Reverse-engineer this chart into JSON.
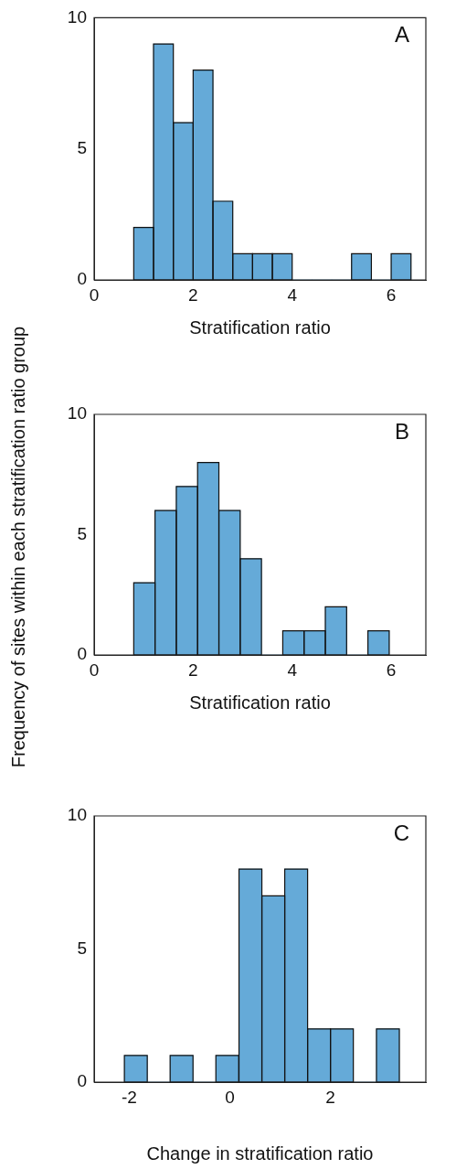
{
  "chart_data": [
    {
      "type": "histogram",
      "xlabel": "Stratification ratio",
      "annotations": [
        "A"
      ],
      "color": "#65aad8",
      "bins": [
        0.8,
        1.2,
        1.6,
        2.0,
        2.4,
        2.8,
        3.2,
        3.6,
        4.0,
        4.4,
        4.8,
        5.2,
        5.6,
        6.0,
        6.4
      ],
      "values": [
        2,
        9,
        6,
        8,
        3,
        1,
        1,
        1,
        0,
        0,
        0,
        1,
        0,
        1
      ],
      "xlim": [
        0,
        6.7
      ],
      "xticks": [
        0,
        2,
        4,
        6
      ],
      "ylim": [
        0,
        10
      ],
      "yticks": [
        0,
        5,
        10
      ],
      "grid": false,
      "legend": false
    },
    {
      "type": "histogram",
      "xlabel": "Stratification ratio",
      "ylabel": "Frequency of sites within each stratification ratio group",
      "annotations": [
        "B"
      ],
      "color": "#65aad8",
      "bins": [
        0.8,
        1.23,
        1.66,
        2.09,
        2.52,
        2.95,
        3.38,
        3.81,
        4.24,
        4.67,
        5.1,
        5.53,
        5.96
      ],
      "values": [
        3,
        6,
        7,
        8,
        6,
        4,
        0,
        1,
        1,
        2,
        0,
        1
      ],
      "xlim": [
        0,
        6.7
      ],
      "xticks": [
        0,
        2,
        4,
        6
      ],
      "ylim": [
        0,
        10
      ],
      "yticks": [
        0,
        5,
        10
      ],
      "grid": false,
      "legend": false
    },
    {
      "type": "histogram",
      "xlabel": "Change in stratification ratio",
      "annotations": [
        "C"
      ],
      "color": "#65aad8",
      "bins": [
        -2.1,
        -1.64,
        -1.19,
        -0.73,
        -0.28,
        0.18,
        0.64,
        1.09,
        1.55,
        2.0,
        2.46,
        2.92,
        3.37
      ],
      "values": [
        1,
        0,
        1,
        0,
        1,
        8,
        7,
        8,
        2,
        2,
        0,
        2
      ],
      "xlim": [
        -2.7,
        3.9
      ],
      "xticks": [
        -2,
        0,
        2
      ],
      "ylim": [
        0,
        10
      ],
      "yticks": [
        0,
        5,
        10
      ],
      "grid": false,
      "legend": false
    }
  ]
}
